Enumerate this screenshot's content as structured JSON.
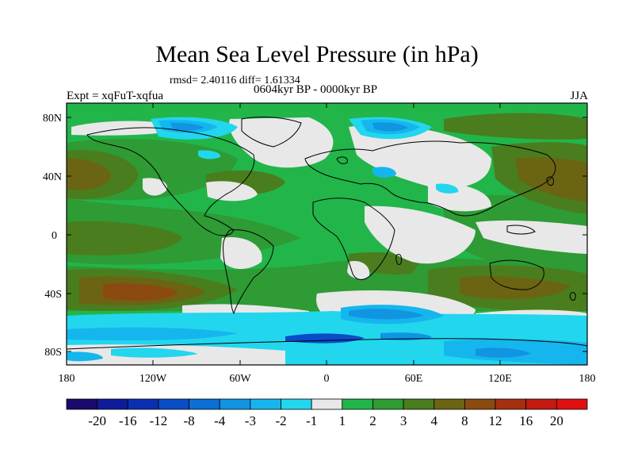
{
  "title": "Mean Sea Level Pressure (in hPa)",
  "stats": "rmsd= 2.40116 diff= 1.61334",
  "period": "0604kyr BP - 0000kyr BP",
  "experiment": "Expt = xqFuT-xqfua",
  "season": "JJA",
  "lat_labels": [
    "80N",
    "40N",
    "0",
    "40S",
    "80S"
  ],
  "lon_labels": [
    "180",
    "120W",
    "60W",
    "0",
    "60E",
    "120E",
    "180"
  ],
  "colorbar": {
    "colors": [
      "#1a0a6e",
      "#0e1b9a",
      "#0b2fb3",
      "#0a4cc8",
      "#0a6fd6",
      "#1194e2",
      "#15b6ee",
      "#22d6ee",
      "#e8e8e8",
      "#22b54a",
      "#2e9b34",
      "#4a7d1e",
      "#6b6412",
      "#8a4a10",
      "#a53010",
      "#c21a10",
      "#e01010"
    ],
    "labels": [
      "-20",
      "-16",
      "-12",
      "-8",
      "-4",
      "-3",
      "-2",
      "-1",
      "1",
      "2",
      "3",
      "4",
      "8",
      "12",
      "16",
      "20"
    ]
  },
  "palette": {
    "green": "#22b54a",
    "dark_green": "#2e9b34",
    "olive": "#4a7d1e",
    "brown": "#6b6412",
    "dark_brown": "#8a4a10",
    "grey": "#e8e8e8",
    "cyan": "#22d6ee",
    "light_blue": "#15b6ee",
    "blue": "#1194e2",
    "dark_blue": "#0a4cc8"
  }
}
